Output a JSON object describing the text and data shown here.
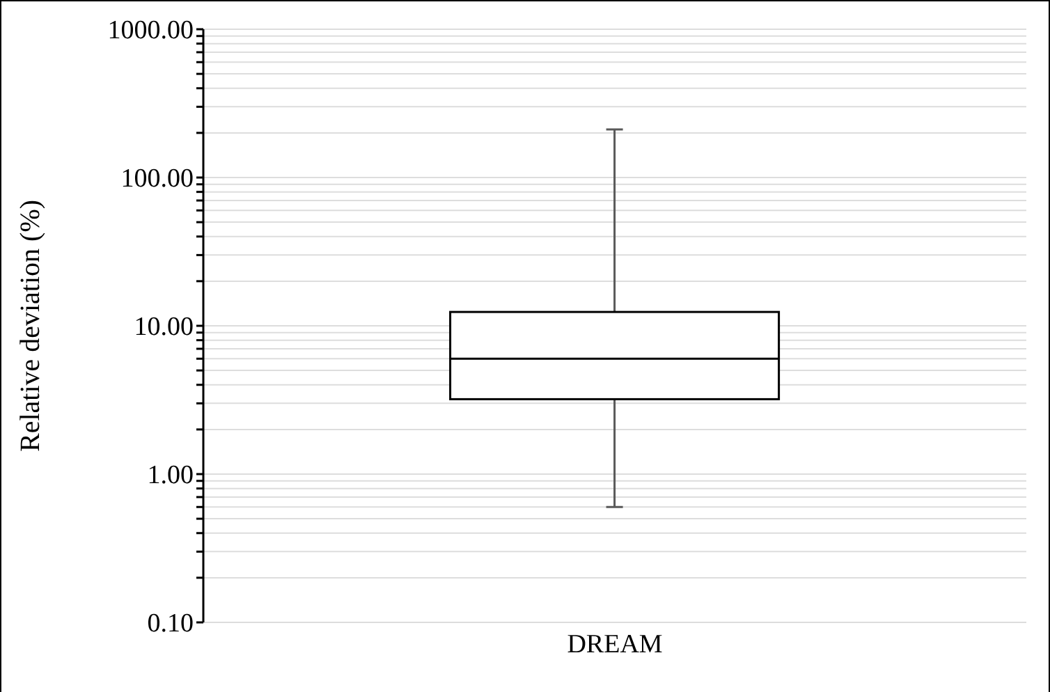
{
  "chart_data": {
    "type": "box",
    "ylabel": "Relative deviation (%)",
    "categories": [
      "DREAM"
    ],
    "boxes": [
      {
        "low": 0.6,
        "q1": 3.2,
        "median": 6.0,
        "q3": 12.4,
        "high": 211
      }
    ],
    "color": "#000000",
    "log": true,
    "grid": "y",
    "ylim": [
      0.1,
      1000
    ],
    "yticks": [
      {
        "value": 0.1,
        "label": "0.10"
      },
      {
        "value": 0.2,
        "label": null
      },
      {
        "value": 0.3,
        "label": null
      },
      {
        "value": 0.4,
        "label": null
      },
      {
        "value": 0.5,
        "label": null
      },
      {
        "value": 0.6,
        "label": null
      },
      {
        "value": 0.7,
        "label": null
      },
      {
        "value": 0.8,
        "label": null
      },
      {
        "value": 0.9,
        "label": null
      },
      {
        "value": 1,
        "label": "1.00"
      },
      {
        "value": 2,
        "label": null
      },
      {
        "value": 3,
        "label": null
      },
      {
        "value": 4,
        "label": null
      },
      {
        "value": 5,
        "label": null
      },
      {
        "value": 6,
        "label": null
      },
      {
        "value": 7,
        "label": null
      },
      {
        "value": 8,
        "label": null
      },
      {
        "value": 9,
        "label": null
      },
      {
        "value": 10,
        "label": "10.00"
      },
      {
        "value": 20,
        "label": null
      },
      {
        "value": 30,
        "label": null
      },
      {
        "value": 40,
        "label": null
      },
      {
        "value": 50,
        "label": null
      },
      {
        "value": 60,
        "label": null
      },
      {
        "value": 70,
        "label": null
      },
      {
        "value": 80,
        "label": null
      },
      {
        "value": 90,
        "label": null
      },
      {
        "value": 100,
        "label": "100.00"
      },
      {
        "value": 200,
        "label": null
      },
      {
        "value": 300,
        "label": null
      },
      {
        "value": 400,
        "label": null
      },
      {
        "value": 500,
        "label": null
      },
      {
        "value": 600,
        "label": null
      },
      {
        "value": 700,
        "label": null
      },
      {
        "value": 800,
        "label": null
      },
      {
        "value": 900,
        "label": null
      },
      {
        "value": 1000,
        "label": "1000.00"
      }
    ]
  }
}
